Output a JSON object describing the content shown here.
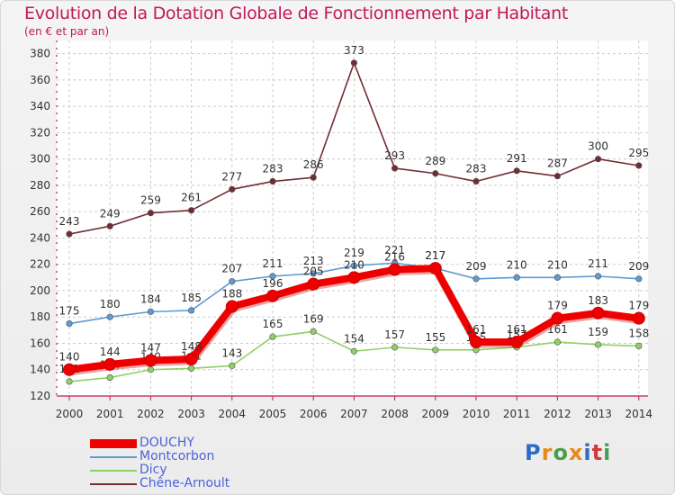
{
  "header": {
    "title": "Evolution de la Dotation Globale de Fonctionnement par Habitant",
    "subtitle": "(en € et par an)"
  },
  "brand": {
    "logo_text": "Proxiti"
  },
  "chart_data": {
    "type": "line",
    "title": "Evolution de la Dotation Globale de Fonctionnement par Habitant",
    "subtitle": "(en € et par an)",
    "xlabel": "",
    "ylabel": "",
    "ylim": [
      120,
      390
    ],
    "yticks": [
      140,
      160,
      180,
      200,
      220,
      240,
      260,
      280,
      300,
      320,
      340,
      360,
      380
    ],
    "y_tick_labels": [
      "140",
      "160",
      "180",
      "200",
      "220",
      "240",
      "260",
      "280",
      "300",
      "320",
      "340",
      "360",
      "380"
    ],
    "y_axis_bottom_label": "120",
    "categories": [
      "2000",
      "2001",
      "2002",
      "2003",
      "2004",
      "2005",
      "2006",
      "2007",
      "2008",
      "2009",
      "2010",
      "2011",
      "2012",
      "2013",
      "2014"
    ],
    "grid": true,
    "legend_position": "bottom-left",
    "series": [
      {
        "name": "Chêne-Arnoult",
        "color": "#722d33",
        "values": [
          243,
          249,
          259,
          261,
          277,
          283,
          286,
          373,
          293,
          289,
          283,
          291,
          287,
          300,
          295
        ],
        "labels": [
          "243",
          "249",
          "259",
          "261",
          "277",
          "283",
          "286",
          "373",
          "293",
          "289",
          "283",
          "291",
          "287",
          "300",
          "295"
        ]
      },
      {
        "name": "Montcorbon",
        "color": "#5f9ad1",
        "values": [
          175,
          180,
          184,
          185,
          207,
          211,
          213,
          219,
          221,
          217,
          209,
          210,
          210,
          211,
          209
        ],
        "labels": [
          "175",
          "180",
          "184",
          "185",
          "207",
          "211",
          "213",
          "219",
          "221",
          "217",
          "209",
          "210",
          "210",
          "211",
          "209"
        ]
      },
      {
        "name": "Dicy",
        "color": "#8fd066",
        "values": [
          131,
          134,
          140,
          141,
          143,
          165,
          169,
          154,
          157,
          155,
          155,
          157,
          161,
          159,
          158
        ],
        "labels": [
          "131",
          "134",
          "140",
          "141",
          "143",
          "165",
          "169",
          "154",
          "157",
          "155",
          "155",
          "157",
          "161",
          "159",
          "158"
        ]
      },
      {
        "name": "DOUCHY",
        "color": "#ee0000",
        "values": [
          140,
          144,
          147,
          148,
          188,
          196,
          205,
          210,
          216,
          217,
          161,
          161,
          179,
          183,
          179
        ],
        "labels": [
          "140",
          "144",
          "147",
          "148",
          "188",
          "196",
          "205",
          "210",
          "216",
          "217",
          "161",
          "161",
          "179",
          "183",
          "179"
        ]
      }
    ],
    "legend": [
      {
        "name": "DOUCHY",
        "color": "#ee0000",
        "weight": "thick"
      },
      {
        "name": "Montcorbon",
        "color": "#5f9ad1",
        "weight": "thin"
      },
      {
        "name": "Dicy",
        "color": "#8fd066",
        "weight": "thin"
      },
      {
        "name": "Chêne-Arnoult",
        "color": "#722d33",
        "weight": "thin"
      }
    ]
  }
}
